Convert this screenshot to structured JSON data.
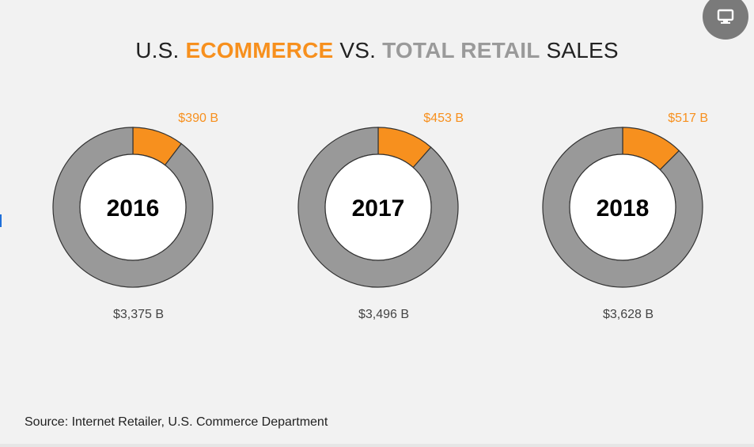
{
  "title": {
    "prefix": "U.S. ",
    "ecommerce": "ECOMMERCE",
    "mid": " VS. ",
    "total_retail": "TOTAL RETAIL",
    "suffix": " SALES"
  },
  "source": "Source: Internet Retailer, U.S. Commerce Department",
  "corner_button": {
    "icon": "monitor-icon"
  },
  "colors": {
    "ecommerce": "#f7901e",
    "total": "#999999",
    "title_total": "#9a9a9a",
    "hole": "#ffffff",
    "outline": "#333333"
  },
  "chart_data": [
    {
      "type": "pie",
      "center_label": "2016",
      "series": [
        {
          "name": "Ecommerce",
          "value": 390,
          "label": "$390 B"
        },
        {
          "name": "Total Retail",
          "value": 3375,
          "label": "$3,375 B"
        }
      ]
    },
    {
      "type": "pie",
      "center_label": "2017",
      "series": [
        {
          "name": "Ecommerce",
          "value": 453,
          "label": "$453 B"
        },
        {
          "name": "Total Retail",
          "value": 3496,
          "label": "$3,496 B"
        }
      ]
    },
    {
      "type": "pie",
      "center_label": "2018",
      "series": [
        {
          "name": "Ecommerce",
          "value": 517,
          "label": "$517 B"
        },
        {
          "name": "Total Retail",
          "value": 3628,
          "label": "$3,628 B"
        }
      ]
    }
  ]
}
